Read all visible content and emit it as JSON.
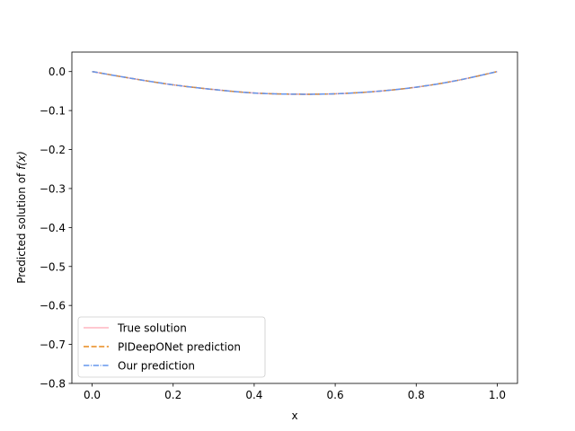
{
  "chart_data": {
    "type": "line",
    "title": "",
    "xlabel": "x",
    "ylabel_prefix": "Predicted solution of ",
    "ylabel_math": "f(x)",
    "xlim": [
      -0.05,
      1.05
    ],
    "ylim": [
      -0.8,
      0.05
    ],
    "xticks": [
      0.0,
      0.2,
      0.4,
      0.6,
      0.8,
      1.0
    ],
    "xtick_labels": [
      "0.0",
      "0.2",
      "0.4",
      "0.6",
      "0.8",
      "1.0"
    ],
    "yticks": [
      0.0,
      -0.1,
      -0.2,
      -0.3,
      -0.4,
      -0.5,
      -0.6,
      -0.7,
      -0.8
    ],
    "ytick_labels": [
      "0.0",
      "−0.1",
      "−0.2",
      "−0.3",
      "−0.4",
      "−0.5",
      "−0.6",
      "−0.7",
      "−0.8"
    ],
    "grid": false,
    "legend_position": "lower-left",
    "x": [
      0.0,
      0.1,
      0.2,
      0.3,
      0.4,
      0.5,
      0.6,
      0.7,
      0.8,
      0.9,
      1.0
    ],
    "series": [
      {
        "name": "True solution",
        "color": "#ffb6c1",
        "style": "solid",
        "values": [
          0.0,
          -0.018,
          -0.034,
          -0.046,
          -0.055,
          -0.058,
          -0.057,
          -0.051,
          -0.04,
          -0.023,
          0.0
        ]
      },
      {
        "name": "PIDeepONet prediction",
        "color": "#e8891a",
        "style": "dashed",
        "values": [
          0.0,
          -0.018,
          -0.034,
          -0.046,
          -0.055,
          -0.058,
          -0.057,
          -0.051,
          -0.04,
          -0.023,
          0.0
        ]
      },
      {
        "name": "Our prediction",
        "color": "#6495ed",
        "style": "dashdot",
        "values": [
          0.0,
          -0.018,
          -0.034,
          -0.046,
          -0.055,
          -0.058,
          -0.057,
          -0.051,
          -0.04,
          -0.023,
          0.0
        ]
      }
    ]
  }
}
